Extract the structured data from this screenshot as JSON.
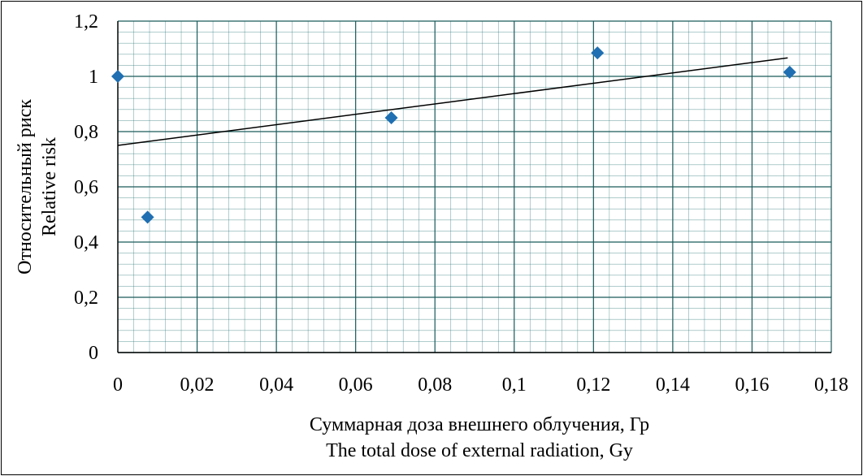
{
  "chart_data": {
    "type": "scatter",
    "title": "",
    "xlabel": [
      "Суммарная доза внешнего облучения, Гр",
      "The total dose of external radiation, Gy"
    ],
    "ylabel": [
      "Относительный риск",
      "Relative risk"
    ],
    "xlim": [
      0,
      0.18
    ],
    "ylim": [
      0,
      1.2
    ],
    "xticks": [
      "0",
      "0,02",
      "0,04",
      "0,06",
      "0,08",
      "0,1",
      "0,12",
      "0,14",
      "0,16",
      "0,18"
    ],
    "yticks": [
      "0",
      "0,2",
      "0,4",
      "0,6",
      "0,8",
      "1",
      "1,2"
    ],
    "grid": true,
    "marker": "diamond",
    "marker_color": "#1f6fb2",
    "points": [
      {
        "x": 0.0,
        "y": 1.0
      },
      {
        "x": 0.0075,
        "y": 0.49
      },
      {
        "x": 0.069,
        "y": 0.85
      },
      {
        "x": 0.121,
        "y": 1.085
      },
      {
        "x": 0.1695,
        "y": 1.015
      }
    ],
    "trendline": {
      "x": [
        0,
        0.169
      ],
      "y": [
        0.75,
        1.067
      ]
    }
  }
}
